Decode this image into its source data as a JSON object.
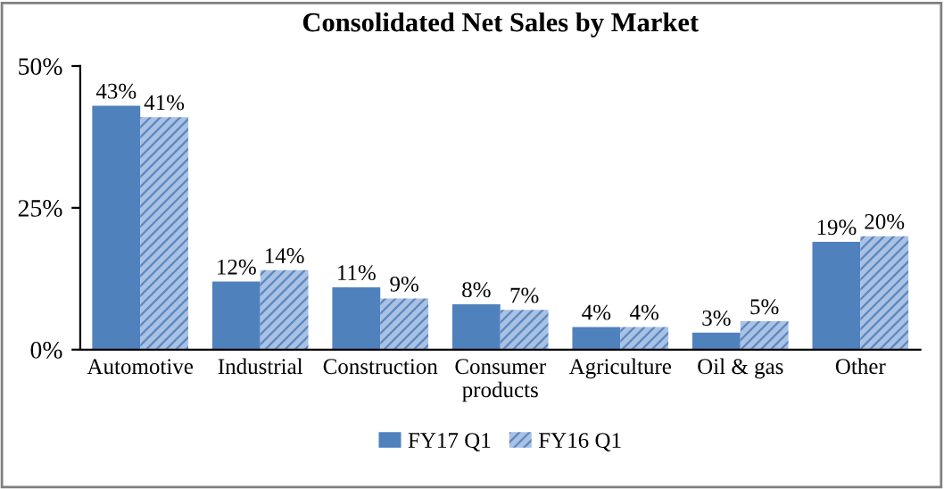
{
  "chart_data": {
    "type": "bar",
    "title": "Consolidated Net Sales by Market",
    "categories": [
      "Automotive",
      "Industrial",
      "Construction",
      "Consumer\nproducts",
      "Agriculture",
      "Oil & gas",
      "Other"
    ],
    "series": [
      {
        "name": "FY17 Q1",
        "color": "#4f81bd",
        "values": [
          43,
          12,
          11,
          8,
          4,
          3,
          19
        ],
        "value_labels": [
          "43%",
          "12%",
          "11%",
          "8%",
          "4%",
          "3%",
          "19%"
        ]
      },
      {
        "name": "FY16 Q1",
        "color": "#a9c1e3",
        "values": [
          41,
          14,
          9,
          7,
          4,
          5,
          20
        ],
        "value_labels": [
          "41%",
          "14%",
          "9%",
          "7%",
          "4%",
          "5%",
          "20%"
        ]
      }
    ],
    "ylim": [
      0,
      50
    ],
    "yticks": [
      {
        "value": 0,
        "label": "0%"
      },
      {
        "value": 25,
        "label": "25%"
      },
      {
        "value": 50,
        "label": "50%"
      }
    ],
    "grid": false,
    "legend": "bottom"
  }
}
